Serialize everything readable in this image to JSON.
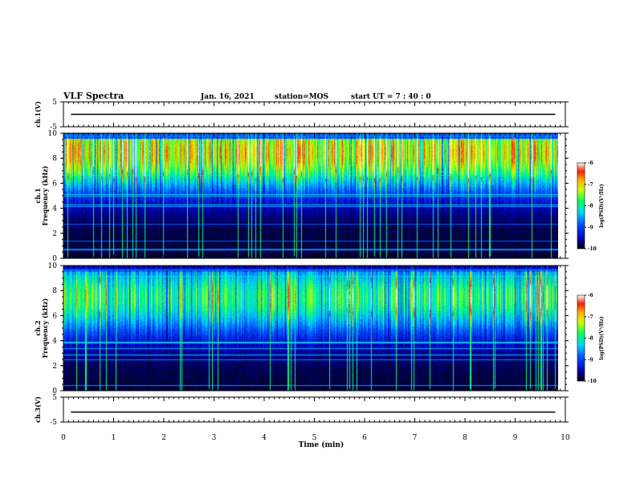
{
  "header": {
    "title": "VLF Spectra",
    "date": "Jan. 16, 2021",
    "station": "station=MOS",
    "start": "start  UT  =   7 : 40 : 0"
  },
  "chart_data": [
    {
      "type": "line",
      "panel": "ch1-waveform",
      "ylabel": "ch.1(V)",
      "ylim": [
        -5,
        5
      ],
      "yticks": [
        "5",
        "-5"
      ],
      "xlim": [
        0,
        10
      ],
      "series": [
        {
          "x": [
            0.15,
            9.8
          ],
          "values": [
            0,
            0
          ]
        }
      ]
    },
    {
      "type": "heatmap",
      "panel": "ch1-spectrogram",
      "ylabel": "ch.1\nFrequency (kHz)",
      "ylim": [
        0,
        10
      ],
      "yticks": [
        "0",
        "2",
        "4",
        "6",
        "8",
        "10"
      ],
      "xlim": [
        0,
        10
      ],
      "colorbar": {
        "label": "log(PSD)(V²/Hz)",
        "range": [
          -10,
          -6
        ],
        "ticks": [
          "-6",
          "-7",
          "-8",
          "-9",
          "-10"
        ]
      },
      "x_extent": [
        0.0,
        9.85
      ],
      "band_center_khz": 8.5,
      "band_level": -6.4
    },
    {
      "type": "heatmap",
      "panel": "ch2-spectrogram",
      "ylabel": "ch.2\nFrequency (kHz)",
      "ylim": [
        0,
        10
      ],
      "yticks": [
        "0",
        "2",
        "4",
        "6",
        "8",
        "10"
      ],
      "xlim": [
        0,
        10
      ],
      "colorbar": {
        "label": "log(PSD)(V²/Hz)",
        "range": [
          -10,
          -6
        ],
        "ticks": [
          "-6",
          "-7",
          "-8",
          "-9",
          "-10"
        ]
      },
      "x_extent": [
        0.0,
        9.85
      ],
      "band_center_khz": 7.5,
      "band_level": -7.4
    },
    {
      "type": "line",
      "panel": "ch3-waveform",
      "ylabel": "ch.3(V)",
      "ylim": [
        -5,
        5
      ],
      "yticks": [
        "5",
        "-5"
      ],
      "xlim": [
        0,
        10
      ],
      "series": [
        {
          "x": [
            0.15,
            9.8
          ],
          "values": [
            -1,
            -1
          ]
        }
      ]
    }
  ],
  "xaxis": {
    "label": "Time  (min)",
    "ticks": [
      "0",
      "1",
      "2",
      "3",
      "4",
      "5",
      "6",
      "7",
      "8",
      "9",
      "10"
    ]
  }
}
